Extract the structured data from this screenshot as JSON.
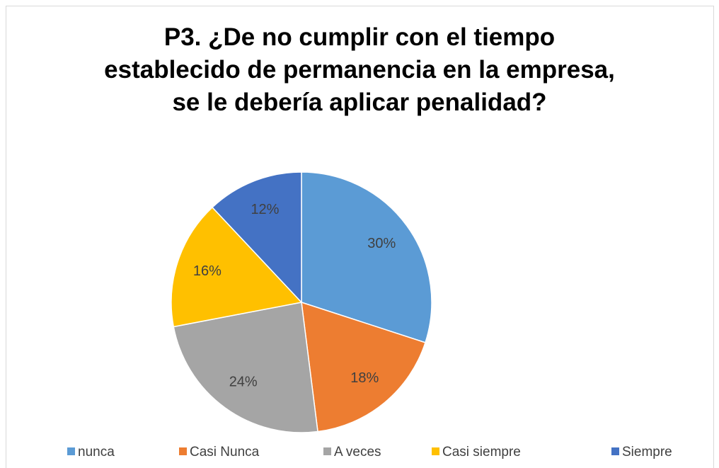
{
  "chart_data": {
    "type": "pie",
    "title": "P3. ¿De no cumplir con el tiempo establecido de permanencia en la empresa, se le debería aplicar penalidad?",
    "categories": [
      "nunca",
      "Casi Nunca",
      "A veces",
      "Casi siempre",
      "Siempre"
    ],
    "values": [
      30,
      18,
      24,
      16,
      12
    ],
    "value_labels": [
      "30%",
      "18%",
      "24%",
      "16%",
      "12%"
    ],
    "colors": [
      "#5b9bd5",
      "#ed7d31",
      "#a5a5a5",
      "#ffc000",
      "#4472c4"
    ],
    "legend": "bottom"
  }
}
